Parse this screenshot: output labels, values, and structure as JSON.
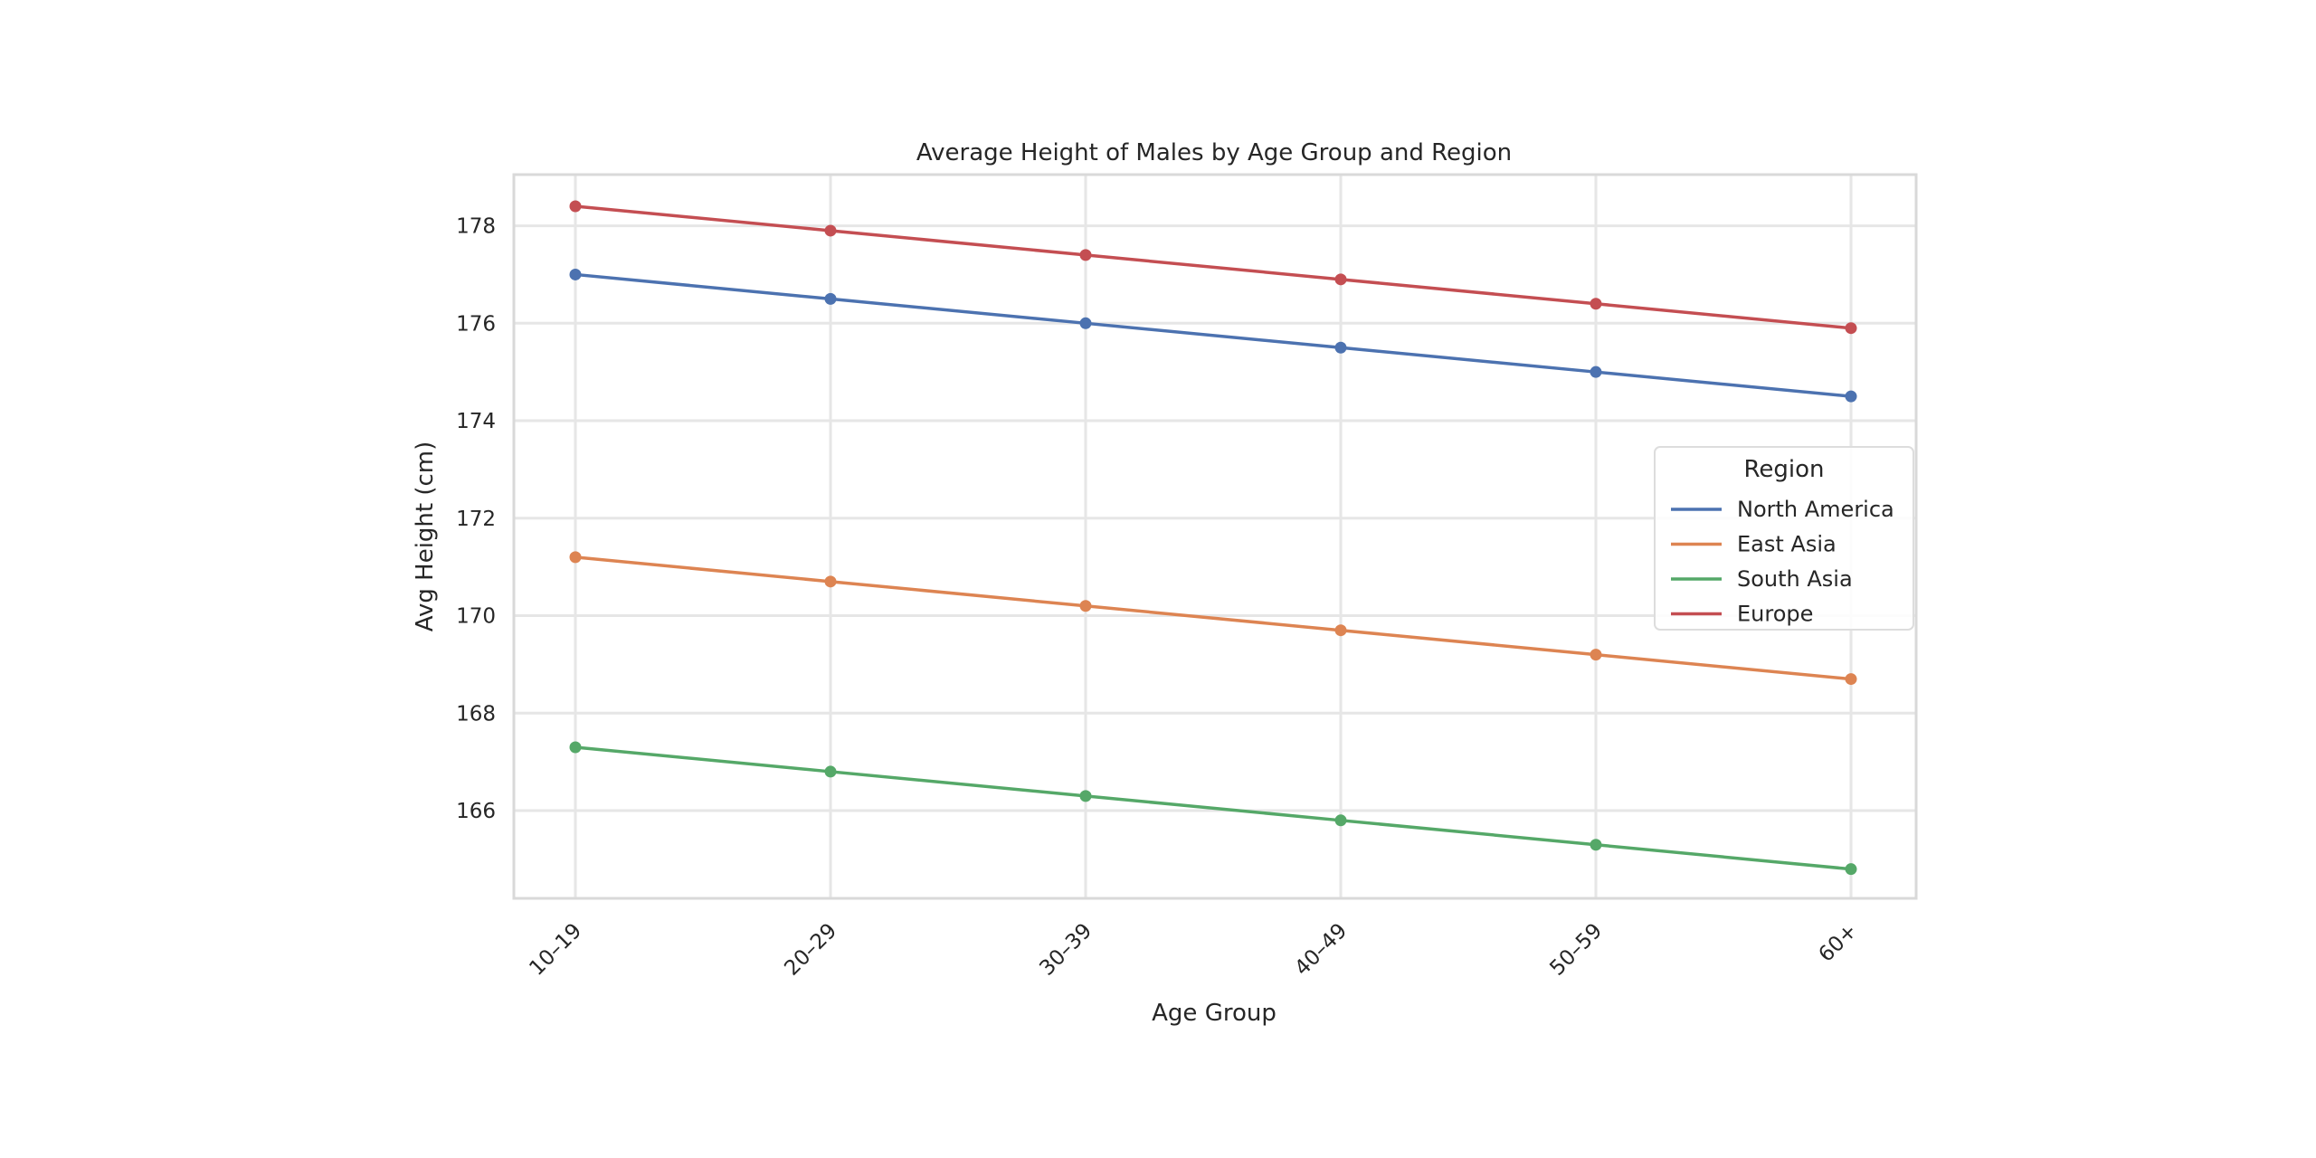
{
  "chart_data": {
    "type": "line",
    "title": "Average Height of Males by Age Group and Region",
    "xlabel": "Age Group",
    "ylabel": "Avg Height (cm)",
    "categories": [
      "10–19",
      "20–29",
      "30–39",
      "40–49",
      "50–59",
      "60+"
    ],
    "yticks": [
      166,
      168,
      170,
      172,
      174,
      176,
      178
    ],
    "ylim": [
      164.2,
      179.05
    ],
    "grid": true,
    "legend": {
      "title": "Region",
      "position": "center right"
    },
    "series": [
      {
        "name": "North America",
        "color": "#4c72b0",
        "values": [
          177.0,
          176.5,
          176.0,
          175.5,
          175.0,
          174.5
        ]
      },
      {
        "name": "East Asia",
        "color": "#dd8452",
        "values": [
          171.2,
          170.7,
          170.2,
          169.7,
          169.2,
          168.7
        ]
      },
      {
        "name": "South Asia",
        "color": "#55a868",
        "values": [
          167.3,
          166.8,
          166.3,
          165.8,
          165.3,
          164.8
        ]
      },
      {
        "name": "Europe",
        "color": "#c44e52",
        "values": [
          178.4,
          177.9,
          177.4,
          176.9,
          176.4,
          175.9
        ]
      }
    ]
  }
}
